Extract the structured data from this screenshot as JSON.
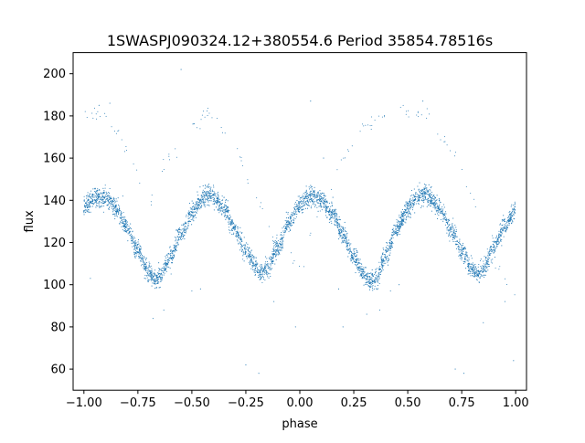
{
  "chart_data": {
    "type": "scatter",
    "title": "1SWASPJ090324.12+380554.6 Period 35854.78516s",
    "xlabel": "phase",
    "ylabel": "flux",
    "xlim": [
      -1.05,
      1.05
    ],
    "ylim": [
      50,
      210
    ],
    "x_ticks": [
      -1.0,
      -0.75,
      -0.5,
      -0.25,
      0.0,
      0.25,
      0.5,
      0.75,
      1.0
    ],
    "x_tick_labels": [
      "−1.00",
      "−0.75",
      "−0.50",
      "−0.25",
      "0.00",
      "0.25",
      "0.50",
      "0.75",
      "1.00"
    ],
    "y_ticks": [
      60,
      80,
      100,
      120,
      140,
      160,
      180,
      200
    ],
    "y_tick_labels": [
      "60",
      "80",
      "100",
      "120",
      "140",
      "160",
      "180",
      "200"
    ],
    "grid": false,
    "marker_color": "#1f77b4",
    "light_curve": {
      "phase": [
        -1.0,
        -0.95,
        -0.9,
        -0.85,
        -0.8,
        -0.75,
        -0.7,
        -0.67,
        -0.65,
        -0.6,
        -0.55,
        -0.5,
        -0.45,
        -0.42,
        -0.4,
        -0.35,
        -0.3,
        -0.25,
        -0.2,
        -0.18,
        -0.15,
        -0.1,
        -0.05,
        0.0,
        0.05,
        0.08,
        0.1,
        0.15,
        0.2,
        0.25,
        0.3,
        0.33,
        0.35,
        0.4,
        0.45,
        0.5,
        0.55,
        0.58,
        0.6,
        0.65,
        0.7,
        0.75,
        0.8,
        0.82,
        0.85,
        0.9,
        0.95,
        1.0
      ],
      "flux": [
        137,
        141,
        141,
        136,
        127,
        116,
        106,
        102,
        104,
        113,
        124,
        134,
        141,
        143,
        142,
        136,
        126,
        116,
        108,
        106,
        108,
        118,
        130,
        138,
        142,
        141,
        140,
        134,
        124,
        113,
        104,
        101,
        103,
        114,
        127,
        136,
        142,
        143,
        142,
        136,
        126,
        116,
        107,
        105,
        108,
        118,
        128,
        136
      ],
      "scatter": 3.2,
      "point_count": 4200
    },
    "secondary_branch": {
      "phase": [
        -1.0,
        -0.9,
        -0.8,
        -0.7,
        -0.6,
        -0.5,
        -0.42,
        -0.3,
        -0.2,
        -0.1,
        0.0,
        0.1,
        0.2,
        0.3,
        0.4,
        0.5,
        0.58,
        0.7,
        0.8,
        0.9,
        1.0
      ],
      "flux": [
        180,
        180,
        165,
        140,
        160,
        175,
        181,
        165,
        140,
        118,
        110,
        135,
        160,
        175,
        180,
        181,
        180,
        165,
        140,
        110,
        95
      ],
      "scatter": 2.5,
      "point_count": 140
    },
    "outliers": [
      {
        "x": -0.93,
        "y": 185
      },
      {
        "x": -0.88,
        "y": 186
      },
      {
        "x": -0.82,
        "y": 142
      },
      {
        "x": -0.68,
        "y": 84
      },
      {
        "x": -0.63,
        "y": 88
      },
      {
        "x": -0.55,
        "y": 202
      },
      {
        "x": -0.5,
        "y": 97
      },
      {
        "x": -0.46,
        "y": 98
      },
      {
        "x": -0.25,
        "y": 62
      },
      {
        "x": -0.19,
        "y": 58
      },
      {
        "x": -0.12,
        "y": 92
      },
      {
        "x": -0.02,
        "y": 80
      },
      {
        "x": 0.05,
        "y": 187
      },
      {
        "x": 0.11,
        "y": 160
      },
      {
        "x": 0.2,
        "y": 80
      },
      {
        "x": 0.31,
        "y": 86
      },
      {
        "x": 0.37,
        "y": 88
      },
      {
        "x": 0.42,
        "y": 97
      },
      {
        "x": 0.46,
        "y": 100
      },
      {
        "x": 0.57,
        "y": 187
      },
      {
        "x": 0.64,
        "y": 135
      },
      {
        "x": 0.72,
        "y": 60
      },
      {
        "x": 0.76,
        "y": 58
      },
      {
        "x": 0.85,
        "y": 82
      },
      {
        "x": 0.95,
        "y": 92
      },
      {
        "x": 0.99,
        "y": 64
      },
      {
        "x": -0.97,
        "y": 103
      },
      {
        "x": 0.18,
        "y": 98
      }
    ]
  }
}
